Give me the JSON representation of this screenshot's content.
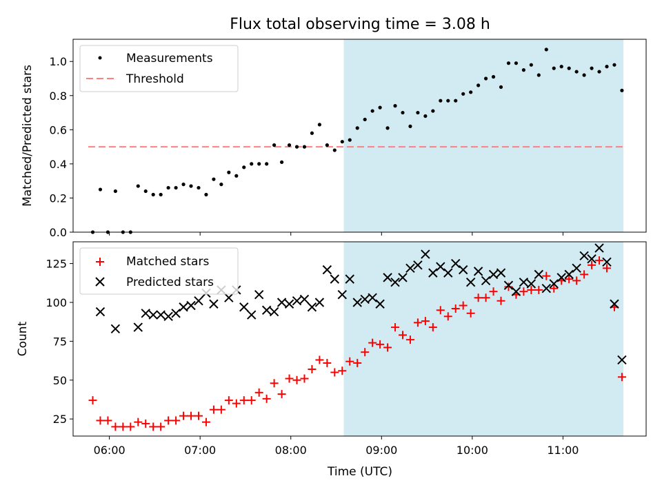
{
  "chart_data": [
    {
      "type": "scatter",
      "title": "Flux total observing time = 3.08 h",
      "xlabel": "",
      "ylabel": "Matched/Predicted stars",
      "xlim": [
        "05:36",
        "11:55"
      ],
      "ylim": [
        0,
        1.13
      ],
      "yticks": [
        0.0,
        0.2,
        0.4,
        0.6,
        0.8,
        1.0
      ],
      "ytick_labels": [
        "0.0",
        "0.2",
        "0.4",
        "0.6",
        "0.8",
        "1.0"
      ],
      "grid": false,
      "legend": "top-left",
      "shaded_region": {
        "x": [
          "08:35",
          "11:40"
        ],
        "color": "#add8e6"
      },
      "threshold": {
        "name": "Threshold",
        "value": 0.5,
        "x": [
          "05:46",
          "11:40"
        ],
        "color": "#ff7f7f",
        "style": "dashed"
      },
      "series": [
        {
          "name": "Measurements",
          "marker": "dot",
          "color": "#000000",
          "points": [
            [
              "05:49",
              0.0
            ],
            [
              "05:54",
              0.25
            ],
            [
              "05:59",
              0.0
            ],
            [
              "06:04",
              0.24
            ],
            [
              "06:09",
              0.0
            ],
            [
              "06:14",
              0.0
            ],
            [
              "06:19",
              0.27
            ],
            [
              "06:24",
              0.24
            ],
            [
              "06:29",
              0.22
            ],
            [
              "06:34",
              0.22
            ],
            [
              "06:39",
              0.26
            ],
            [
              "06:44",
              0.26
            ],
            [
              "06:49",
              0.28
            ],
            [
              "06:54",
              0.27
            ],
            [
              "06:59",
              0.26
            ],
            [
              "07:04",
              0.22
            ],
            [
              "07:09",
              0.31
            ],
            [
              "07:14",
              0.28
            ],
            [
              "07:19",
              0.35
            ],
            [
              "07:24",
              0.33
            ],
            [
              "07:29",
              0.38
            ],
            [
              "07:34",
              0.4
            ],
            [
              "07:39",
              0.4
            ],
            [
              "07:44",
              0.4
            ],
            [
              "07:49",
              0.51
            ],
            [
              "07:54",
              0.41
            ],
            [
              "07:59",
              0.51
            ],
            [
              "08:04",
              0.5
            ],
            [
              "08:09",
              0.5
            ],
            [
              "08:14",
              0.58
            ],
            [
              "08:19",
              0.63
            ],
            [
              "08:24",
              0.51
            ],
            [
              "08:29",
              0.48
            ],
            [
              "08:34",
              0.53
            ],
            [
              "08:39",
              0.54
            ],
            [
              "08:44",
              0.61
            ],
            [
              "08:49",
              0.66
            ],
            [
              "08:54",
              0.71
            ],
            [
              "08:59",
              0.73
            ],
            [
              "09:04",
              0.61
            ],
            [
              "09:09",
              0.74
            ],
            [
              "09:14",
              0.7
            ],
            [
              "09:19",
              0.62
            ],
            [
              "09:24",
              0.7
            ],
            [
              "09:29",
              0.68
            ],
            [
              "09:34",
              0.71
            ],
            [
              "09:39",
              0.77
            ],
            [
              "09:44",
              0.77
            ],
            [
              "09:49",
              0.77
            ],
            [
              "09:54",
              0.81
            ],
            [
              "09:59",
              0.82
            ],
            [
              "10:04",
              0.86
            ],
            [
              "10:09",
              0.9
            ],
            [
              "10:14",
              0.91
            ],
            [
              "10:19",
              0.85
            ],
            [
              "10:24",
              0.99
            ],
            [
              "10:29",
              0.99
            ],
            [
              "10:34",
              0.95
            ],
            [
              "10:39",
              0.98
            ],
            [
              "10:44",
              0.92
            ],
            [
              "10:49",
              1.07
            ],
            [
              "10:54",
              0.96
            ],
            [
              "10:59",
              0.97
            ],
            [
              "11:04",
              0.96
            ],
            [
              "11:09",
              0.94
            ],
            [
              "11:14",
              0.92
            ],
            [
              "11:19",
              0.96
            ],
            [
              "11:24",
              0.94
            ],
            [
              "11:29",
              0.97
            ],
            [
              "11:34",
              0.98
            ],
            [
              "11:39",
              0.83
            ]
          ]
        }
      ]
    },
    {
      "type": "scatter",
      "title": "",
      "xlabel": "Time (UTC)",
      "ylabel": "Count",
      "xlim": [
        "05:36",
        "11:55"
      ],
      "ylim": [
        14,
        139
      ],
      "xticks": [
        "06:00",
        "07:00",
        "08:00",
        "09:00",
        "10:00",
        "11:00"
      ],
      "xtick_labels": [
        "06:00",
        "07:00",
        "08:00",
        "09:00",
        "10:00",
        "11:00"
      ],
      "yticks": [
        25,
        50,
        75,
        100,
        125
      ],
      "ytick_labels": [
        "25",
        "50",
        "75",
        "100",
        "125"
      ],
      "grid": false,
      "legend": "top-left",
      "shaded_region": {
        "x": [
          "08:35",
          "11:40"
        ],
        "color": "#add8e6"
      },
      "series": [
        {
          "name": "Matched stars",
          "marker": "plus",
          "color": "#ff0000",
          "points": [
            [
              "05:49",
              37
            ],
            [
              "05:54",
              24
            ],
            [
              "05:59",
              24
            ],
            [
              "06:04",
              20
            ],
            [
              "06:09",
              20
            ],
            [
              "06:14",
              20
            ],
            [
              "06:19",
              23
            ],
            [
              "06:24",
              22
            ],
            [
              "06:29",
              20
            ],
            [
              "06:34",
              20
            ],
            [
              "06:39",
              24
            ],
            [
              "06:44",
              24
            ],
            [
              "06:49",
              27
            ],
            [
              "06:54",
              27
            ],
            [
              "06:59",
              27
            ],
            [
              "07:04",
              23
            ],
            [
              "07:09",
              31
            ],
            [
              "07:14",
              31
            ],
            [
              "07:19",
              37
            ],
            [
              "07:24",
              35
            ],
            [
              "07:29",
              37
            ],
            [
              "07:34",
              37
            ],
            [
              "07:39",
              42
            ],
            [
              "07:44",
              38
            ],
            [
              "07:49",
              48
            ],
            [
              "07:54",
              41
            ],
            [
              "07:59",
              51
            ],
            [
              "08:04",
              50
            ],
            [
              "08:09",
              51
            ],
            [
              "08:14",
              57
            ],
            [
              "08:19",
              63
            ],
            [
              "08:24",
              61
            ],
            [
              "08:29",
              55
            ],
            [
              "08:34",
              56
            ],
            [
              "08:39",
              62
            ],
            [
              "08:44",
              61
            ],
            [
              "08:49",
              68
            ],
            [
              "08:54",
              74
            ],
            [
              "08:59",
              73
            ],
            [
              "09:04",
              71
            ],
            [
              "09:09",
              84
            ],
            [
              "09:14",
              79
            ],
            [
              "09:19",
              76
            ],
            [
              "09:24",
              87
            ],
            [
              "09:29",
              88
            ],
            [
              "09:34",
              84
            ],
            [
              "09:39",
              95
            ],
            [
              "09:44",
              91
            ],
            [
              "09:49",
              96
            ],
            [
              "09:54",
              98
            ],
            [
              "09:59",
              93
            ],
            [
              "10:04",
              103
            ],
            [
              "10:09",
              103
            ],
            [
              "10:14",
              107
            ],
            [
              "10:19",
              101
            ],
            [
              "10:24",
              110
            ],
            [
              "10:29",
              105
            ],
            [
              "10:34",
              107
            ],
            [
              "10:39",
              108
            ],
            [
              "10:44",
              108
            ],
            [
              "10:49",
              117
            ],
            [
              "10:54",
              109
            ],
            [
              "10:59",
              114
            ],
            [
              "11:04",
              115
            ],
            [
              "11:09",
              114
            ],
            [
              "11:14",
              118
            ],
            [
              "11:19",
              124
            ],
            [
              "11:24",
              127
            ],
            [
              "11:29",
              122
            ],
            [
              "11:34",
              97
            ],
            [
              "11:39",
              52
            ]
          ]
        },
        {
          "name": "Predicted stars",
          "marker": "x",
          "color": "#000000",
          "points": [
            [
              "05:54",
              94
            ],
            [
              "06:04",
              83
            ],
            [
              "06:19",
              84
            ],
            [
              "06:24",
              93
            ],
            [
              "06:29",
              92
            ],
            [
              "06:34",
              92
            ],
            [
              "06:39",
              91
            ],
            [
              "06:44",
              93
            ],
            [
              "06:49",
              97
            ],
            [
              "06:54",
              98
            ],
            [
              "06:59",
              101
            ],
            [
              "07:04",
              106
            ],
            [
              "07:09",
              99
            ],
            [
              "07:14",
              108
            ],
            [
              "07:19",
              103
            ],
            [
              "07:24",
              108
            ],
            [
              "07:29",
              97
            ],
            [
              "07:34",
              92
            ],
            [
              "07:39",
              105
            ],
            [
              "07:44",
              95
            ],
            [
              "07:49",
              94
            ],
            [
              "07:54",
              100
            ],
            [
              "07:59",
              99
            ],
            [
              "08:04",
              101
            ],
            [
              "08:09",
              102
            ],
            [
              "08:14",
              97
            ],
            [
              "08:19",
              100
            ],
            [
              "08:24",
              121
            ],
            [
              "08:29",
              115
            ],
            [
              "08:34",
              105
            ],
            [
              "08:39",
              115
            ],
            [
              "08:44",
              100
            ],
            [
              "08:49",
              102
            ],
            [
              "08:54",
              103
            ],
            [
              "08:59",
              99
            ],
            [
              "09:04",
              116
            ],
            [
              "09:09",
              113
            ],
            [
              "09:14",
              116
            ],
            [
              "09:19",
              122
            ],
            [
              "09:24",
              124
            ],
            [
              "09:29",
              131
            ],
            [
              "09:34",
              119
            ],
            [
              "09:39",
              123
            ],
            [
              "09:44",
              119
            ],
            [
              "09:49",
              125
            ],
            [
              "09:54",
              121
            ],
            [
              "09:59",
              113
            ],
            [
              "10:04",
              120
            ],
            [
              "10:09",
              114
            ],
            [
              "10:14",
              118
            ],
            [
              "10:19",
              119
            ],
            [
              "10:24",
              111
            ],
            [
              "10:29",
              107
            ],
            [
              "10:34",
              113
            ],
            [
              "10:39",
              112
            ],
            [
              "10:44",
              118
            ],
            [
              "10:49",
              109
            ],
            [
              "10:54",
              112
            ],
            [
              "10:59",
              116
            ],
            [
              "11:04",
              118
            ],
            [
              "11:09",
              122
            ],
            [
              "11:14",
              130
            ],
            [
              "11:19",
              128
            ],
            [
              "11:24",
              135
            ],
            [
              "11:29",
              126
            ],
            [
              "11:34",
              99
            ],
            [
              "11:39",
              63
            ]
          ]
        }
      ]
    }
  ]
}
